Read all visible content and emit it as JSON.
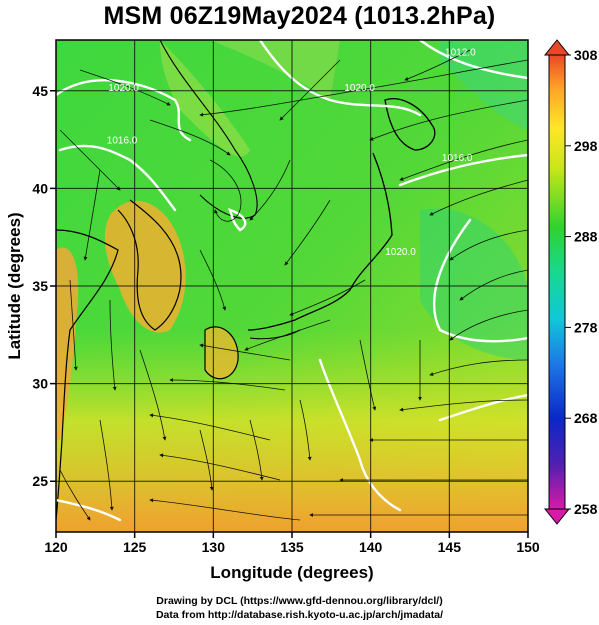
{
  "title": "MSM 06Z19May2024 (1013.2hPa)",
  "x_axis": {
    "label": "Longitude (degrees)",
    "range": [
      120,
      150
    ],
    "ticks": [
      120,
      125,
      130,
      135,
      140,
      145,
      150
    ]
  },
  "y_axis": {
    "label": "Latitude  (degrees)",
    "range": [
      22.4,
      47.6
    ],
    "ticks": [
      25,
      30,
      35,
      40,
      45
    ]
  },
  "colorbar": {
    "range": [
      258,
      308
    ],
    "ticks": [
      258,
      268,
      278,
      288,
      298,
      308
    ],
    "colors": [
      "#d81aa8",
      "#5020b0",
      "#0a28c8",
      "#1e78e6",
      "#10c8d8",
      "#18d890",
      "#30d230",
      "#c8e618",
      "#ffe628",
      "#ffa028",
      "#e84828"
    ]
  },
  "isobar_labels": [
    {
      "text": "1012.0",
      "lon": 145.7,
      "lat": 46.8
    },
    {
      "text": "1016.0",
      "lon": 145.5,
      "lat": 41.4
    },
    {
      "text": "1020.0",
      "lon": 139.3,
      "lat": 45.0
    },
    {
      "text": "1020.0",
      "lon": 124.3,
      "lat": 45.0
    },
    {
      "text": "1016.0",
      "lon": 124.2,
      "lat": 42.3
    },
    {
      "text": "1020.0",
      "lon": 141.9,
      "lat": 36.6
    }
  ],
  "credits": [
    "Drawing by DCL (https://www.gfd-dennou.org/library/dcl/)",
    "Data from http://database.rish.kyoto-u.ac.jp/arch/jmadata/"
  ]
}
